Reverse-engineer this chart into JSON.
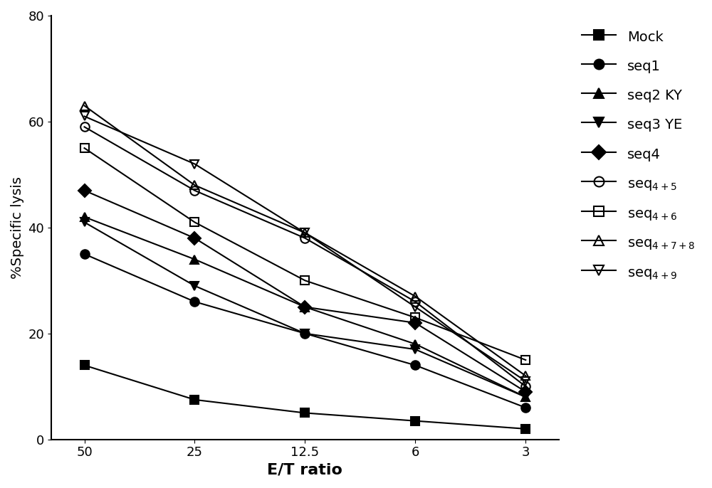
{
  "x_positions": [
    0,
    1,
    2,
    3,
    4
  ],
  "x_tick_labels": [
    "50",
    "25",
    "12.5",
    "6",
    "3"
  ],
  "series": [
    {
      "label": "Mock",
      "values": [
        14,
        7.5,
        5,
        3.5,
        2
      ],
      "marker": "s",
      "fillstyle": "full",
      "color": "black"
    },
    {
      "label": "seq1",
      "values": [
        35,
        26,
        20,
        14,
        6
      ],
      "marker": "o",
      "fillstyle": "full",
      "color": "black"
    },
    {
      "label": "seq2 KY",
      "values": [
        42,
        34,
        25,
        18,
        8
      ],
      "marker": "^",
      "fillstyle": "full",
      "color": "black"
    },
    {
      "label": "seq3 YE",
      "values": [
        41,
        29,
        20,
        17,
        8
      ],
      "marker": "v",
      "fillstyle": "full",
      "color": "black"
    },
    {
      "label": "seq4",
      "values": [
        47,
        38,
        25,
        22,
        9
      ],
      "marker": "D",
      "fillstyle": "full",
      "color": "black"
    },
    {
      "label": "seq$_{4+5}$",
      "values": [
        59,
        47,
        38,
        26,
        10
      ],
      "marker": "o",
      "fillstyle": "none",
      "color": "black"
    },
    {
      "label": "seq$_{4+6}$",
      "values": [
        55,
        41,
        30,
        23,
        15
      ],
      "marker": "s",
      "fillstyle": "none",
      "color": "black"
    },
    {
      "label": "seq$_{4+7+8}$",
      "values": [
        63,
        48,
        39,
        27,
        12
      ],
      "marker": "^",
      "fillstyle": "none",
      "color": "black"
    },
    {
      "label": "seq$_{4+9}$",
      "values": [
        61,
        52,
        39,
        25,
        11
      ],
      "marker": "v",
      "fillstyle": "none",
      "color": "black"
    }
  ],
  "xlabel": "E/T ratio",
  "ylabel": "%Specific lysis",
  "ylim": [
    0,
    80
  ],
  "yticks": [
    0,
    20,
    40,
    60,
    80
  ],
  "background_color": "#ffffff",
  "linewidth": 1.5,
  "markersize": 9
}
